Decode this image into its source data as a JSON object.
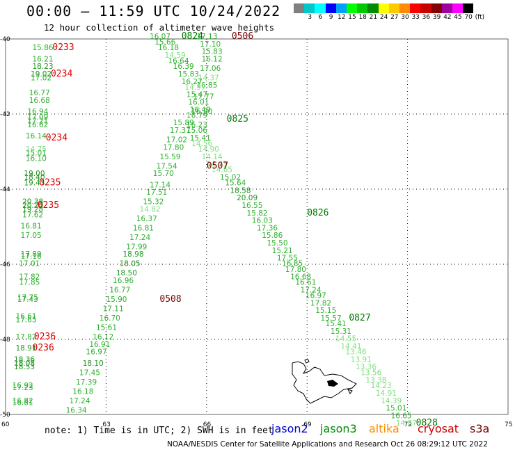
{
  "header": {
    "title": "00:00 – 11:59 UTC 10/24/2022",
    "subtitle": "12 hour collection of altimeter wave heights"
  },
  "color_scale": {
    "unit": "(ft)",
    "bins": [
      {
        "label": "",
        "color": "#808080"
      },
      {
        "label": "3",
        "color": "#00c8c8"
      },
      {
        "label": "6",
        "color": "#00ffff"
      },
      {
        "label": "9",
        "color": "#0000ff"
      },
      {
        "label": "12",
        "color": "#00a0ff"
      },
      {
        "label": "15",
        "color": "#00ff00"
      },
      {
        "label": "18",
        "color": "#00c800"
      },
      {
        "label": "21",
        "color": "#008c00"
      },
      {
        "label": "24",
        "color": "#ffff00"
      },
      {
        "label": "27",
        "color": "#ffc800"
      },
      {
        "label": "30",
        "color": "#ff8c00"
      },
      {
        "label": "33",
        "color": "#ff0000"
      },
      {
        "label": "36",
        "color": "#c80000"
      },
      {
        "label": "39",
        "color": "#820000"
      },
      {
        "label": "42",
        "color": "#a000a0"
      },
      {
        "label": "45",
        "color": "#ff00ff"
      },
      {
        "label": "70",
        "color": "#000000"
      }
    ]
  },
  "map": {
    "lon_ticks": [
      "60",
      "63",
      "66",
      "69",
      "72",
      "75"
    ],
    "lat_ticks": [
      "-40",
      "-42",
      "-44",
      "-46",
      "-48",
      "-50"
    ],
    "colors": {
      "c15": "#2db02d",
      "c15b": "#1e961e",
      "c12": "#80e080",
      "label_red": "#e00000",
      "label_dark": "#780000",
      "label_green": "#007800"
    },
    "tracks": [
      {
        "name": "track-0233",
        "values": [
          {
            "t": "15.86",
            "lon": 60.8,
            "lat": -40.3
          },
          {
            "t": "16.21",
            "lon": 60.8,
            "lat": -40.6
          },
          {
            "t": "18.23",
            "lon": 60.8,
            "lat": -40.8
          },
          {
            "t": "19.02",
            "lon": 60.75,
            "lat": -41.0
          },
          {
            "t": "17.02",
            "lon": 60.75,
            "lat": -41.1
          },
          {
            "t": "16.77",
            "lon": 60.7,
            "lat": -41.5
          },
          {
            "t": "16.68",
            "lon": 60.7,
            "lat": -41.7
          },
          {
            "t": "16.94",
            "lon": 60.65,
            "lat": -42.0
          },
          {
            "t": "17.09",
            "lon": 60.65,
            "lat": -42.15
          },
          {
            "t": "17.21",
            "lon": 60.65,
            "lat": -42.25
          },
          {
            "t": "16.62",
            "lon": 60.65,
            "lat": -42.35
          },
          {
            "t": "16.14",
            "lon": 60.6,
            "lat": -42.65
          },
          {
            "t": "14.75",
            "lon": 60.6,
            "lat": -43.0
          },
          {
            "t": "15.01",
            "lon": 60.6,
            "lat": -43.1
          },
          {
            "t": "16.10",
            "lon": 60.6,
            "lat": -43.25
          },
          {
            "t": "19.00",
            "lon": 60.55,
            "lat": -43.65
          },
          {
            "t": "18.40",
            "lon": 60.55,
            "lat": -43.75
          },
          {
            "t": "19.43",
            "lon": 60.55,
            "lat": -43.9
          },
          {
            "t": "20.38",
            "lon": 60.5,
            "lat": -44.4
          },
          {
            "t": "20.20",
            "lon": 60.5,
            "lat": -44.5
          },
          {
            "t": "19.28",
            "lon": 60.5,
            "lat": -44.6
          },
          {
            "t": "17.62",
            "lon": 60.5,
            "lat": -44.75
          },
          {
            "t": "16.81",
            "lon": 60.45,
            "lat": -45.05
          },
          {
            "t": "17.05",
            "lon": 60.45,
            "lat": -45.3
          },
          {
            "t": "17.89",
            "lon": 60.45,
            "lat": -45.8
          },
          {
            "t": "17.16",
            "lon": 60.45,
            "lat": -45.85
          },
          {
            "t": "17.01",
            "lon": 60.4,
            "lat": -46.05
          },
          {
            "t": "17.82",
            "lon": 60.4,
            "lat": -46.4
          },
          {
            "t": "17.85",
            "lon": 60.4,
            "lat": -46.55
          },
          {
            "t": "17.75",
            "lon": 60.35,
            "lat": -46.95
          },
          {
            "t": "17.43",
            "lon": 60.35,
            "lat": -47.0
          },
          {
            "t": "16.61",
            "lon": 60.3,
            "lat": -47.45
          },
          {
            "t": "17.65",
            "lon": 60.3,
            "lat": -47.55
          },
          {
            "t": "17.82",
            "lon": 60.3,
            "lat": -48.0
          },
          {
            "t": "18.91",
            "lon": 60.3,
            "lat": -48.3
          },
          {
            "t": "18.36",
            "lon": 60.25,
            "lat": -48.6
          },
          {
            "t": "18.08",
            "lon": 60.25,
            "lat": -48.7
          },
          {
            "t": "18.53",
            "lon": 60.25,
            "lat": -48.8
          },
          {
            "t": "16.92",
            "lon": 60.2,
            "lat": -49.3
          },
          {
            "t": "17.23",
            "lon": 60.2,
            "lat": -49.35
          },
          {
            "t": "16.82",
            "lon": 60.2,
            "lat": -49.7
          },
          {
            "t": "16.81",
            "lon": 60.2,
            "lat": -49.75
          }
        ],
        "labels": [
          {
            "t": "0233",
            "lon": 61.4,
            "lat": -40.3,
            "kind": "red"
          },
          {
            "t": "0234",
            "lon": 61.35,
            "lat": -41.0,
            "kind": "red"
          },
          {
            "t": "0234",
            "lon": 61.2,
            "lat": -42.7,
            "kind": "red"
          },
          {
            "t": "0235",
            "lon": 61.0,
            "lat": -43.9,
            "kind": "red"
          },
          {
            "t": "0235",
            "lon": 60.95,
            "lat": -44.5,
            "kind": "red"
          },
          {
            "t": "0236",
            "lon": 60.85,
            "lat": -48.0,
            "kind": "red"
          },
          {
            "t": "0236",
            "lon": 60.8,
            "lat": -48.3,
            "kind": "red"
          }
        ]
      },
      {
        "name": "track-0506",
        "values": [
          {
            "t": "17.13",
            "lon": 65.7,
            "lat": -40.0
          },
          {
            "t": "17.10",
            "lon": 65.8,
            "lat": -40.2
          },
          {
            "t": "15.83",
            "lon": 65.85,
            "lat": -40.4
          },
          {
            "t": "16.12",
            "lon": 65.85,
            "lat": -40.6
          },
          {
            "t": "17.06",
            "lon": 65.8,
            "lat": -40.85
          },
          {
            "t": "14.37",
            "lon": 65.75,
            "lat": -41.1
          },
          {
            "t": "16.85",
            "lon": 65.7,
            "lat": -41.3
          },
          {
            "t": "17.77",
            "lon": 65.6,
            "lat": -41.6
          },
          {
            "t": "16.49",
            "lon": 65.5,
            "lat": -41.95
          },
          {
            "t": "16.79",
            "lon": 65.4,
            "lat": -42.1
          },
          {
            "t": "16.23",
            "lon": 65.4,
            "lat": -42.35
          },
          {
            "t": "15.06",
            "lon": 65.4,
            "lat": -42.5
          },
          {
            "t": "15.41",
            "lon": 65.5,
            "lat": -42.7
          },
          {
            "t": "14.56",
            "lon": 65.55,
            "lat": -42.85
          },
          {
            "t": "14.90",
            "lon": 65.75,
            "lat": -43.0
          },
          {
            "t": "14.14",
            "lon": 65.85,
            "lat": -43.2
          },
          {
            "t": "14.73",
            "lon": 66.0,
            "lat": -43.4
          },
          {
            "t": "14.65",
            "lon": 66.15,
            "lat": -43.55
          },
          {
            "t": "15.02",
            "lon": 66.4,
            "lat": -43.75
          },
          {
            "t": "15.64",
            "lon": 66.55,
            "lat": -43.9
          },
          {
            "t": "18.58",
            "lon": 66.7,
            "lat": -44.1
          },
          {
            "t": "20.09",
            "lon": 66.9,
            "lat": -44.3
          },
          {
            "t": "16.55",
            "lon": 67.05,
            "lat": -44.5
          },
          {
            "t": "15.82",
            "lon": 67.2,
            "lat": -44.7
          },
          {
            "t": "16.03",
            "lon": 67.35,
            "lat": -44.9
          },
          {
            "t": "17.36",
            "lon": 67.5,
            "lat": -45.1
          },
          {
            "t": "15.86",
            "lon": 67.65,
            "lat": -45.3
          },
          {
            "t": "15.50",
            "lon": 67.8,
            "lat": -45.5
          },
          {
            "t": "15.21",
            "lon": 67.95,
            "lat": -45.7
          },
          {
            "t": "17.55",
            "lon": 68.1,
            "lat": -45.9
          },
          {
            "t": "16.85",
            "lon": 68.25,
            "lat": -46.05
          },
          {
            "t": "17.80",
            "lon": 68.35,
            "lat": -46.2
          },
          {
            "t": "16.68",
            "lon": 68.5,
            "lat": -46.4
          },
          {
            "t": "16.61",
            "lon": 68.65,
            "lat": -46.55
          },
          {
            "t": "17.24",
            "lon": 68.8,
            "lat": -46.75
          },
          {
            "t": "16.97",
            "lon": 68.95,
            "lat": -46.9
          },
          {
            "t": "17.82",
            "lon": 69.1,
            "lat": -47.1
          },
          {
            "t": "15.15",
            "lon": 69.25,
            "lat": -47.3
          },
          {
            "t": "15.57",
            "lon": 69.4,
            "lat": -47.5
          },
          {
            "t": "15.41",
            "lon": 69.55,
            "lat": -47.65
          },
          {
            "t": "15.31",
            "lon": 69.7,
            "lat": -47.85
          },
          {
            "t": "14.55",
            "lon": 69.85,
            "lat": -48.05
          },
          {
            "t": "14.41",
            "lon": 70.0,
            "lat": -48.25
          },
          {
            "t": "13.46",
            "lon": 70.15,
            "lat": -48.4
          },
          {
            "t": "13.91",
            "lon": 70.3,
            "lat": -48.6
          },
          {
            "t": "13.36",
            "lon": 70.45,
            "lat": -48.8
          },
          {
            "t": "13.56",
            "lon": 70.6,
            "lat": -48.95
          },
          {
            "t": "13.38",
            "lon": 70.75,
            "lat": -49.15
          },
          {
            "t": "14.23",
            "lon": 70.9,
            "lat": -49.3
          },
          {
            "t": "14.91",
            "lon": 71.05,
            "lat": -49.5
          },
          {
            "t": "14.39",
            "lon": 71.2,
            "lat": -49.7
          },
          {
            "t": "15.01",
            "lon": 71.35,
            "lat": -49.9
          },
          {
            "t": "16.65",
            "lon": 71.5,
            "lat": -50.1
          },
          {
            "t": "14.87",
            "lon": 71.65,
            "lat": -50.3
          }
        ],
        "labels": [
          {
            "t": "0506",
            "lon": 66.75,
            "lat": -40.0,
            "kind": "dark"
          },
          {
            "t": "0825",
            "lon": 66.6,
            "lat": -42.2,
            "kind": "green"
          },
          {
            "t": "0826",
            "lon": 69.0,
            "lat": -44.7,
            "kind": "green"
          },
          {
            "t": "0827",
            "lon": 70.25,
            "lat": -47.5,
            "kind": "green"
          },
          {
            "t": "0828",
            "lon": 72.25,
            "lat": -50.3,
            "kind": "green"
          }
        ]
      },
      {
        "name": "track-0824",
        "values": [
          {
            "t": "16.07",
            "lon": 64.3,
            "lat": -40.0
          },
          {
            "t": "15.66",
            "lon": 64.45,
            "lat": -40.15
          },
          {
            "t": "16.18",
            "lon": 64.55,
            "lat": -40.3
          },
          {
            "t": "14.59",
            "lon": 64.75,
            "lat": -40.5
          },
          {
            "t": "16.64",
            "lon": 64.85,
            "lat": -40.65
          },
          {
            "t": "16.39",
            "lon": 65.0,
            "lat": -40.8
          },
          {
            "t": "15.83",
            "lon": 65.15,
            "lat": -41.0
          },
          {
            "t": "16.27",
            "lon": 65.25,
            "lat": -41.2
          },
          {
            "t": "14.97",
            "lon": 65.35,
            "lat": -41.35
          },
          {
            "t": "15.47",
            "lon": 65.4,
            "lat": -41.55
          },
          {
            "t": "16.01",
            "lon": 65.45,
            "lat": -41.75
          },
          {
            "t": "16.90",
            "lon": 65.55,
            "lat": -42.0
          }
        ],
        "labels": [
          {
            "t": "0824",
            "lon": 65.25,
            "lat": -40.0,
            "kind": "green"
          }
        ]
      },
      {
        "name": "track-0507",
        "values": [
          {
            "t": "15.89",
            "lon": 65.0,
            "lat": -42.3
          },
          {
            "t": "17.37",
            "lon": 64.9,
            "lat": -42.5
          },
          {
            "t": "17.02",
            "lon": 64.8,
            "lat": -42.75
          },
          {
            "t": "17.80",
            "lon": 64.7,
            "lat": -42.95
          },
          {
            "t": "15.59",
            "lon": 64.6,
            "lat": -43.2
          },
          {
            "t": "17.54",
            "lon": 64.5,
            "lat": -43.45
          },
          {
            "t": "15.70",
            "lon": 64.4,
            "lat": -43.65
          },
          {
            "t": "17.14",
            "lon": 64.3,
            "lat": -43.95
          },
          {
            "t": "17.51",
            "lon": 64.2,
            "lat": -44.15
          },
          {
            "t": "15.32",
            "lon": 64.1,
            "lat": -44.4
          },
          {
            "t": "14.82",
            "lon": 64.0,
            "lat": -44.6
          },
          {
            "t": "16.37",
            "lon": 63.9,
            "lat": -44.85
          },
          {
            "t": "16.81",
            "lon": 63.8,
            "lat": -45.1
          },
          {
            "t": "17.24",
            "lon": 63.7,
            "lat": -45.35
          },
          {
            "t": "17.99",
            "lon": 63.6,
            "lat": -45.6
          },
          {
            "t": "18.98",
            "lon": 63.5,
            "lat": -45.8
          },
          {
            "t": "18.05",
            "lon": 63.4,
            "lat": -46.05
          },
          {
            "t": "18.50",
            "lon": 63.3,
            "lat": -46.3
          },
          {
            "t": "16.96",
            "lon": 63.2,
            "lat": -46.5
          },
          {
            "t": "16.77",
            "lon": 63.1,
            "lat": -46.75
          },
          {
            "t": "15.90",
            "lon": 63.0,
            "lat": -47.0
          },
          {
            "t": "17.11",
            "lon": 62.9,
            "lat": -47.25
          },
          {
            "t": "16.70",
            "lon": 62.8,
            "lat": -47.5
          },
          {
            "t": "15.61",
            "lon": 62.7,
            "lat": -47.75
          },
          {
            "t": "16.12",
            "lon": 62.6,
            "lat": -48.0
          },
          {
            "t": "16.91",
            "lon": 62.5,
            "lat": -48.2
          },
          {
            "t": "16.97",
            "lon": 62.4,
            "lat": -48.4
          },
          {
            "t": "18.10",
            "lon": 62.3,
            "lat": -48.7
          },
          {
            "t": "17.45",
            "lon": 62.2,
            "lat": -48.95
          },
          {
            "t": "17.39",
            "lon": 62.1,
            "lat": -49.2
          },
          {
            "t": "16.18",
            "lon": 62.0,
            "lat": -49.45
          },
          {
            "t": "17.24",
            "lon": 61.9,
            "lat": -49.7
          },
          {
            "t": "16.34",
            "lon": 61.8,
            "lat": -49.95
          }
        ],
        "labels": [
          {
            "t": "0507",
            "lon": 66.0,
            "lat": -43.45,
            "kind": "dark"
          },
          {
            "t": "0508",
            "lon": 64.6,
            "lat": -47.0,
            "kind": "dark"
          }
        ]
      }
    ]
  },
  "footer": {
    "note": "note: 1) Time is in UTC; 2) SWH is in feet",
    "satellites": [
      {
        "label": "jason2",
        "color": "#0000d0"
      },
      {
        "label": "jason3",
        "color": "#008c00"
      },
      {
        "label": "altika",
        "color": "#ff8c00"
      },
      {
        "label": "cryosat",
        "color": "#d00000"
      },
      {
        "label": "s3a",
        "color": "#780000"
      }
    ],
    "credit": "NOAA/NESDIS Center for Satellite Applications and Research    Oct 26 08:29:12 UTC 2022"
  }
}
